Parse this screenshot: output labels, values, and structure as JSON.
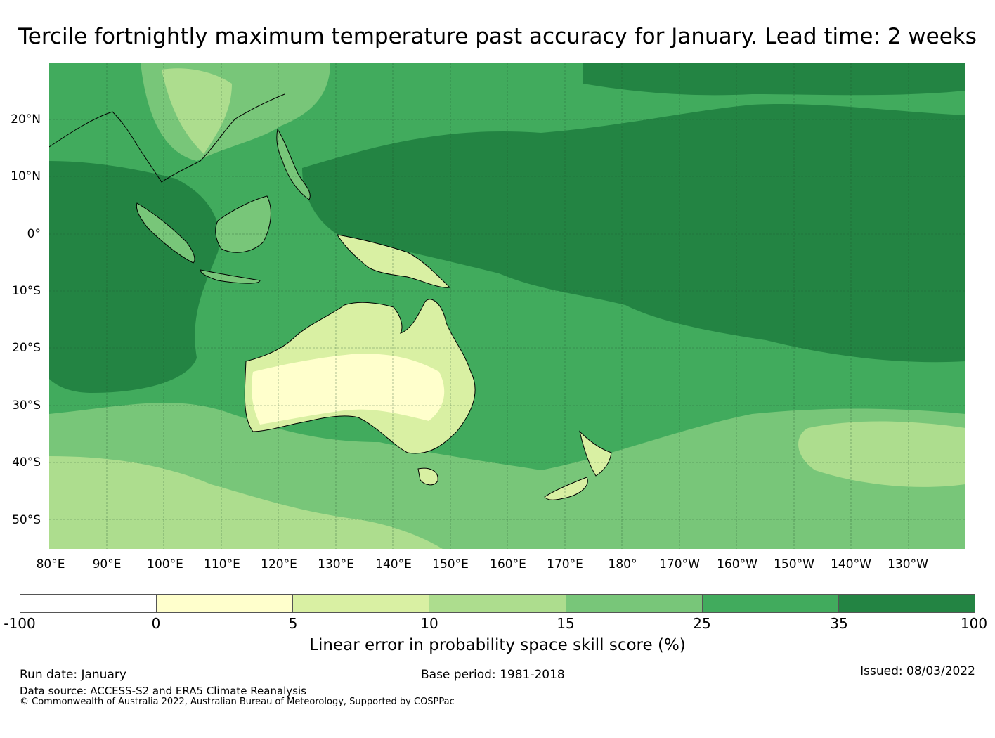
{
  "title": "Tercile fortnightly maximum temperature past accuracy for January. Lead time: 2 weeks",
  "map": {
    "region": "Indo-Pacific and Australia",
    "lat_labels": [
      "20°N",
      "10°N",
      "0°",
      "10°S",
      "20°S",
      "30°S",
      "40°S",
      "50°S"
    ],
    "lon_labels": [
      "80°E",
      "90°E",
      "100°E",
      "110°E",
      "120°E",
      "130°E",
      "140°E",
      "150°E",
      "160°E",
      "170°E",
      "180°",
      "170°W",
      "160°W",
      "150°W",
      "140°W",
      "130°W"
    ]
  },
  "colorbar": {
    "ticks": [
      "-100",
      "0",
      "5",
      "10",
      "15",
      "25",
      "35",
      "100"
    ],
    "colors": [
      "#ffffff",
      "#ffffcc",
      "#d9f0a3",
      "#addd8e",
      "#78c679",
      "#41ab5d",
      "#238443"
    ],
    "label": "Linear error in probability space skill score (%)"
  },
  "footer": {
    "run_date": "Run date: January",
    "base_period": "Base period: 1981-2018",
    "issued": "Issued: 08/03/2022",
    "data_source": "Data source: ACCESS-S2 and ERA5 Climate Reanalysis",
    "copyright": "© Commonwealth of Australia 2022, Australian Bureau of Meteorology, Supported by COSPPac"
  }
}
